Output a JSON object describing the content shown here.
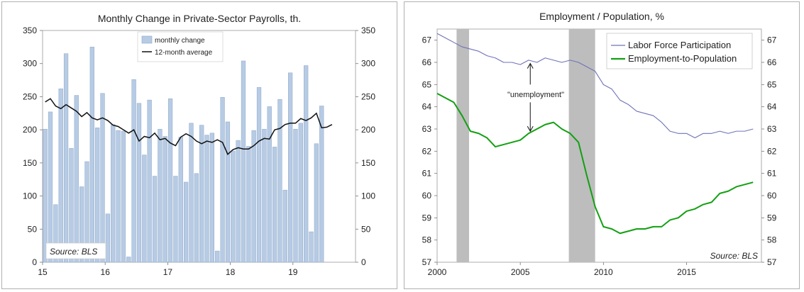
{
  "chart_data": [
    {
      "type": "bar",
      "title": "Monthly Change in Private-Sector Payrolls, th.",
      "source": "Source: BLS",
      "x_ticks": [
        "15",
        "16",
        "17",
        "18",
        "19"
      ],
      "y_ticks": [
        "0",
        "50",
        "100",
        "150",
        "200",
        "250",
        "300",
        "350"
      ],
      "ylim": [
        0,
        350
      ],
      "x_range_months": [
        0,
        60
      ],
      "legend_position": "top-center",
      "series": [
        {
          "name": "monthly change",
          "type": "bar",
          "color": "#b7cbe4",
          "values": [
            201,
            227,
            87,
            262,
            315,
            172,
            252,
            114,
            152,
            325,
            203,
            255,
            73,
            208,
            199,
            198,
            8,
            276,
            240,
            162,
            245,
            130,
            201,
            190,
            247,
            130,
            189,
            121,
            210,
            134,
            207,
            192,
            195,
            17,
            249,
            212,
            168,
            184,
            304,
            175,
            199,
            264,
            201,
            235,
            174,
            246,
            109,
            286,
            201,
            210,
            297,
            46,
            179,
            236
          ]
        },
        {
          "name": "12-month average",
          "type": "line",
          "color": "#111111",
          "values": [
            242,
            247,
            236,
            232,
            238,
            233,
            228,
            220,
            226,
            218,
            215,
            218,
            214,
            207,
            205,
            200,
            195,
            200,
            183,
            190,
            188,
            195,
            185,
            187,
            180,
            176,
            189,
            194,
            190,
            183,
            179,
            183,
            181,
            185,
            181,
            163,
            170,
            173,
            171,
            171,
            176,
            183,
            187,
            186,
            200,
            202,
            208,
            210,
            210,
            217,
            214,
            218,
            225,
            203,
            204,
            208
          ]
        }
      ]
    },
    {
      "type": "line",
      "title": "Employment / Population, %",
      "source": "Source: BLS",
      "annotation": "\"unemployment\"",
      "x_ticks": [
        "2000",
        "2005",
        "2010",
        "2015"
      ],
      "y_ticks": [
        "57",
        "58",
        "59",
        "60",
        "61",
        "62",
        "63",
        "64",
        "65",
        "66",
        "67"
      ],
      "xlim": [
        2000,
        2019.5
      ],
      "ylim": [
        57,
        67.5
      ],
      "legend_position": "top-right",
      "recessions": [
        [
          2001.17,
          2001.92
        ],
        [
          2007.92,
          2009.5
        ]
      ],
      "series": [
        {
          "name": "Labor Force Participation",
          "color": "#6e73b8",
          "x": [
            2000.0,
            2000.5,
            2001.0,
            2001.5,
            2002.0,
            2002.5,
            2003.0,
            2003.5,
            2004.0,
            2004.5,
            2005.0,
            2005.5,
            2006.0,
            2006.5,
            2007.0,
            2007.5,
            2008.0,
            2008.5,
            2009.0,
            2009.5,
            2010.0,
            2010.5,
            2011.0,
            2011.5,
            2012.0,
            2012.5,
            2013.0,
            2013.5,
            2014.0,
            2014.5,
            2015.0,
            2015.5,
            2016.0,
            2016.5,
            2017.0,
            2017.5,
            2018.0,
            2018.5,
            2019.0
          ],
          "y": [
            67.3,
            67.1,
            66.9,
            66.7,
            66.6,
            66.5,
            66.3,
            66.2,
            66.0,
            66.0,
            65.9,
            66.1,
            66.0,
            66.2,
            66.1,
            66.0,
            66.1,
            66.0,
            65.8,
            65.6,
            65.0,
            64.8,
            64.3,
            64.1,
            63.8,
            63.7,
            63.6,
            63.3,
            62.9,
            62.8,
            62.8,
            62.6,
            62.8,
            62.8,
            62.9,
            62.8,
            62.9,
            62.9,
            63.0
          ]
        },
        {
          "name": "Employment-to-Population",
          "color": "#12a012",
          "x": [
            2000.0,
            2000.5,
            2001.0,
            2001.5,
            2002.0,
            2002.5,
            2003.0,
            2003.5,
            2004.0,
            2004.5,
            2005.0,
            2005.5,
            2006.0,
            2006.5,
            2007.0,
            2007.5,
            2008.0,
            2008.5,
            2009.0,
            2009.5,
            2010.0,
            2010.5,
            2011.0,
            2011.5,
            2012.0,
            2012.5,
            2013.0,
            2013.5,
            2014.0,
            2014.5,
            2015.0,
            2015.5,
            2016.0,
            2016.5,
            2017.0,
            2017.5,
            2018.0,
            2018.5,
            2019.0
          ],
          "y": [
            64.6,
            64.4,
            64.2,
            63.6,
            62.9,
            62.8,
            62.6,
            62.2,
            62.3,
            62.4,
            62.5,
            62.8,
            63.0,
            63.2,
            63.3,
            63.0,
            62.8,
            62.4,
            60.9,
            59.5,
            58.6,
            58.5,
            58.3,
            58.4,
            58.5,
            58.5,
            58.6,
            58.6,
            58.9,
            59.0,
            59.3,
            59.4,
            59.6,
            59.7,
            60.1,
            60.2,
            60.4,
            60.5,
            60.6
          ]
        }
      ]
    }
  ]
}
